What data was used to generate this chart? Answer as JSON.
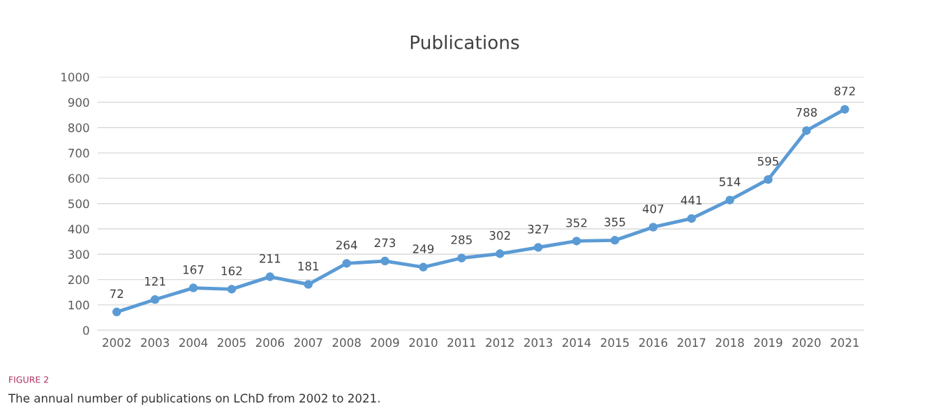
{
  "chart_data": {
    "type": "line",
    "title": "Publications",
    "categories": [
      "2002",
      "2003",
      "2004",
      "2005",
      "2006",
      "2007",
      "2008",
      "2009",
      "2010",
      "2011",
      "2012",
      "2013",
      "2014",
      "2015",
      "2016",
      "2017",
      "2018",
      "2019",
      "2020",
      "2021"
    ],
    "series": [
      {
        "color": "#5b9bd5",
        "values": [
          72,
          121,
          167,
          162,
          211,
          181,
          264,
          273,
          249,
          285,
          302,
          327,
          352,
          355,
          407,
          441,
          514,
          595,
          788,
          872
        ]
      }
    ],
    "ylim": [
      0,
      1000
    ],
    "yticks": [
      0,
      100,
      200,
      300,
      400,
      500,
      600,
      700,
      800,
      900,
      1000
    ],
    "grid": "y",
    "marker": "circle",
    "line_style": "solid",
    "data_labels": true,
    "annotations": [
      "FIGURE 2",
      "The annual number of publications on LChD from 2002 to 2021."
    ]
  }
}
